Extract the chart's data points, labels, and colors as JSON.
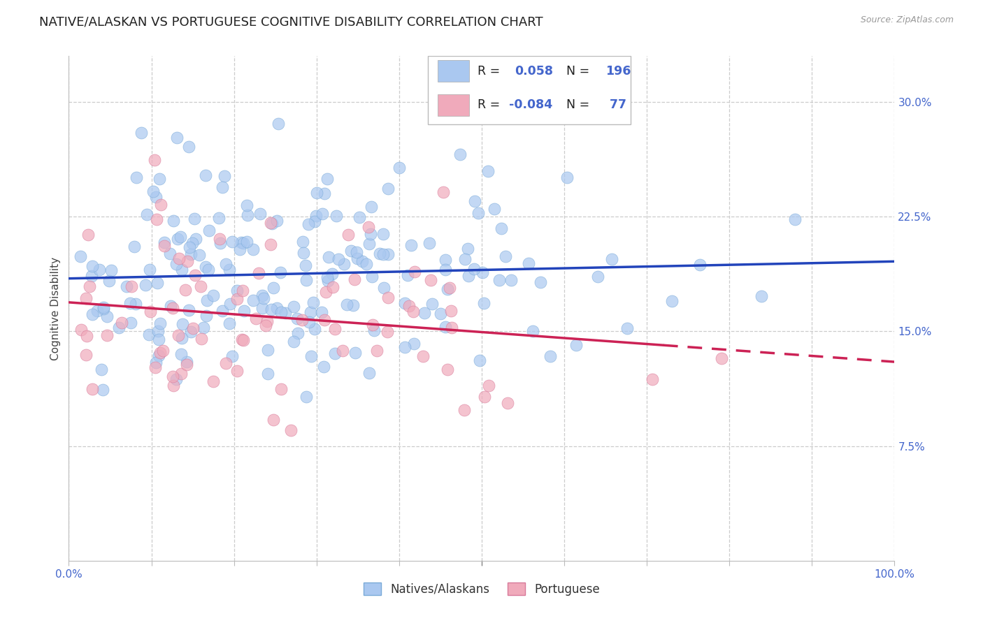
{
  "title": "NATIVE/ALASKAN VS PORTUGUESE COGNITIVE DISABILITY CORRELATION CHART",
  "source": "Source: ZipAtlas.com",
  "ylabel": "Cognitive Disability",
  "xlim": [
    0.0,
    1.0
  ],
  "ylim": [
    0.0,
    0.33
  ],
  "yticks": [
    0.075,
    0.15,
    0.225,
    0.3
  ],
  "yticklabels": [
    "7.5%",
    "15.0%",
    "22.5%",
    "30.0%"
  ],
  "blue_color": "#aac8f0",
  "blue_edge_color": "#7aaad8",
  "blue_line_color": "#2244bb",
  "pink_color": "#f0aabb",
  "pink_edge_color": "#d87a9a",
  "pink_line_color": "#cc2255",
  "blue_R": 0.058,
  "blue_N": 196,
  "pink_R": -0.084,
  "pink_N": 77,
  "legend_label_blue": "Natives/Alaskans",
  "legend_label_pink": "Portuguese",
  "background_color": "#ffffff",
  "grid_color": "#cccccc",
  "title_fontsize": 13,
  "axis_label_fontsize": 11,
  "tick_fontsize": 11,
  "tick_color_right": "#4466cc",
  "legend_R_color": "#4466cc",
  "seed_blue": 42,
  "seed_pink": 7
}
